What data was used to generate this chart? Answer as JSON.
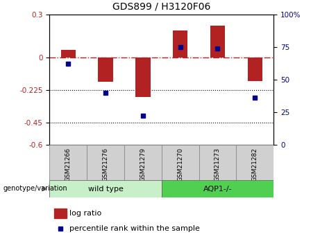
{
  "title": "GDS899 / H3120F06",
  "samples": [
    "GSM21266",
    "GSM21276",
    "GSM21279",
    "GSM21270",
    "GSM21273",
    "GSM21282"
  ],
  "log_ratios": [
    0.055,
    -0.165,
    -0.27,
    0.19,
    0.22,
    -0.16
  ],
  "percentile_ranks": [
    62,
    40,
    22,
    75,
    74,
    36
  ],
  "left_yticks": [
    0.3,
    0.0,
    -0.225,
    -0.45,
    -0.6
  ],
  "left_yticklabels": [
    "0.3",
    "0",
    "-0.225",
    "-0.45",
    "-0.6"
  ],
  "right_yticks": [
    100,
    75,
    50,
    25,
    0
  ],
  "right_yticklabels": [
    "100%",
    "75",
    "50",
    "25",
    "0"
  ],
  "ylim": [
    -0.6,
    0.3
  ],
  "bar_color": "#b22222",
  "dot_color": "#00008b",
  "dotted_lines": [
    -0.225,
    -0.45
  ],
  "legend_bar_label": "log ratio",
  "legend_dot_label": "percentile rank within the sample",
  "genotype_label": "genotype/variation",
  "wild_type_label": "wild type",
  "aqp1_label": "AQP1-/-",
  "wt_color": "#c8f0c8",
  "aqp_color": "#50d050",
  "sample_box_color": "#d0d0d0",
  "bar_width": 0.4
}
